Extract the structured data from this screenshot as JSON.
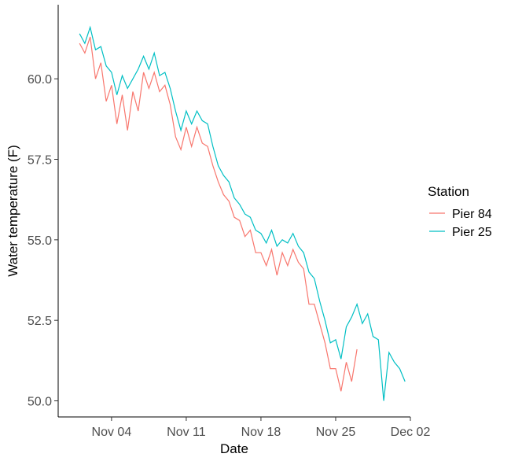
{
  "chart_data": {
    "type": "line",
    "xlabel": "Date",
    "ylabel": "Water temperature (F)",
    "x_ticks": [
      "Nov 04",
      "Nov 11",
      "Nov 18",
      "Nov 25",
      "Dec 02"
    ],
    "y_ticks": [
      "50.0",
      "52.5",
      "55.0",
      "57.5",
      "60.0"
    ],
    "xlim": [
      "2021-10-30",
      "2021-12-02"
    ],
    "ylim": [
      49.5,
      62.3
    ],
    "grid": false,
    "legend": {
      "title": "Station",
      "position": "right"
    },
    "series": [
      {
        "name": "Pier 84",
        "color": "#F8766D",
        "points": [
          [
            "2021-11-01",
            61.1
          ],
          [
            "2021-11-01T12:00",
            60.8
          ],
          [
            "2021-11-02",
            61.3
          ],
          [
            "2021-11-02T12:00",
            60.0
          ],
          [
            "2021-11-03",
            60.5
          ],
          [
            "2021-11-03T12:00",
            59.3
          ],
          [
            "2021-11-04",
            59.8
          ],
          [
            "2021-11-04T12:00",
            58.6
          ],
          [
            "2021-11-05",
            59.5
          ],
          [
            "2021-11-05T12:00",
            58.4
          ],
          [
            "2021-11-06",
            59.6
          ],
          [
            "2021-11-06T12:00",
            59.0
          ],
          [
            "2021-11-07",
            60.2
          ],
          [
            "2021-11-07T12:00",
            59.7
          ],
          [
            "2021-11-08",
            60.2
          ],
          [
            "2021-11-08T12:00",
            59.6
          ],
          [
            "2021-11-09",
            59.8
          ],
          [
            "2021-11-09T12:00",
            59.2
          ],
          [
            "2021-11-10",
            58.2
          ],
          [
            "2021-11-10T12:00",
            57.8
          ],
          [
            "2021-11-11",
            58.5
          ],
          [
            "2021-11-11T12:00",
            57.9
          ],
          [
            "2021-11-12",
            58.5
          ],
          [
            "2021-11-12T12:00",
            58.0
          ],
          [
            "2021-11-13",
            57.9
          ],
          [
            "2021-11-13T12:00",
            57.3
          ],
          [
            "2021-11-14",
            56.8
          ],
          [
            "2021-11-14T12:00",
            56.4
          ],
          [
            "2021-11-15",
            56.2
          ],
          [
            "2021-11-15T12:00",
            55.7
          ],
          [
            "2021-11-16",
            55.6
          ],
          [
            "2021-11-16T12:00",
            55.1
          ],
          [
            "2021-11-17",
            55.3
          ],
          [
            "2021-11-17T12:00",
            54.6
          ],
          [
            "2021-11-18",
            54.6
          ],
          [
            "2021-11-18T12:00",
            54.2
          ],
          [
            "2021-11-19",
            54.7
          ],
          [
            "2021-11-19T12:00",
            53.9
          ],
          [
            "2021-11-20",
            54.6
          ],
          [
            "2021-11-20T12:00",
            54.2
          ],
          [
            "2021-11-21",
            54.7
          ],
          [
            "2021-11-21T12:00",
            54.3
          ],
          [
            "2021-11-22",
            54.1
          ],
          [
            "2021-11-22T12:00",
            53.0
          ],
          [
            "2021-11-23",
            53.0
          ],
          [
            "2021-11-23T12:00",
            52.4
          ],
          [
            "2021-11-24",
            51.8
          ],
          [
            "2021-11-24T12:00",
            51.0
          ],
          [
            "2021-11-25",
            51.0
          ],
          [
            "2021-11-25T12:00",
            50.3
          ],
          [
            "2021-11-26",
            51.2
          ],
          [
            "2021-11-26T12:00",
            50.6
          ],
          [
            "2021-11-27",
            51.6
          ]
        ]
      },
      {
        "name": "Pier 25",
        "color": "#00BFC4",
        "points": [
          [
            "2021-11-01",
            61.4
          ],
          [
            "2021-11-01T12:00",
            61.1
          ],
          [
            "2021-11-02",
            61.6
          ],
          [
            "2021-11-02T12:00",
            60.9
          ],
          [
            "2021-11-03",
            61.0
          ],
          [
            "2021-11-03T12:00",
            60.4
          ],
          [
            "2021-11-04",
            60.2
          ],
          [
            "2021-11-04T12:00",
            59.5
          ],
          [
            "2021-11-05",
            60.1
          ],
          [
            "2021-11-05T12:00",
            59.7
          ],
          [
            "2021-11-06",
            60.0
          ],
          [
            "2021-11-06T12:00",
            60.3
          ],
          [
            "2021-11-07",
            60.7
          ],
          [
            "2021-11-07T12:00",
            60.3
          ],
          [
            "2021-11-08",
            60.8
          ],
          [
            "2021-11-08T12:00",
            60.1
          ],
          [
            "2021-11-09",
            60.2
          ],
          [
            "2021-11-09T12:00",
            59.7
          ],
          [
            "2021-11-10",
            59.0
          ],
          [
            "2021-11-10T12:00",
            58.4
          ],
          [
            "2021-11-11",
            59.0
          ],
          [
            "2021-11-11T12:00",
            58.6
          ],
          [
            "2021-11-12",
            59.0
          ],
          [
            "2021-11-12T12:00",
            58.7
          ],
          [
            "2021-11-13",
            58.6
          ],
          [
            "2021-11-13T12:00",
            57.9
          ],
          [
            "2021-11-14",
            57.3
          ],
          [
            "2021-11-14T12:00",
            57.0
          ],
          [
            "2021-11-15",
            56.8
          ],
          [
            "2021-11-15T12:00",
            56.3
          ],
          [
            "2021-11-16",
            56.1
          ],
          [
            "2021-11-16T12:00",
            55.8
          ],
          [
            "2021-11-17",
            55.7
          ],
          [
            "2021-11-17T12:00",
            55.3
          ],
          [
            "2021-11-18",
            55.2
          ],
          [
            "2021-11-18T12:00",
            54.9
          ],
          [
            "2021-11-19",
            55.3
          ],
          [
            "2021-11-19T12:00",
            54.8
          ],
          [
            "2021-11-20",
            55.0
          ],
          [
            "2021-11-20T12:00",
            54.9
          ],
          [
            "2021-11-21",
            55.2
          ],
          [
            "2021-11-21T12:00",
            54.8
          ],
          [
            "2021-11-22",
            54.6
          ],
          [
            "2021-11-22T12:00",
            54.0
          ],
          [
            "2021-11-23",
            53.8
          ],
          [
            "2021-11-23T12:00",
            53.1
          ],
          [
            "2021-11-24",
            52.5
          ],
          [
            "2021-11-24T12:00",
            51.8
          ],
          [
            "2021-11-25",
            51.9
          ],
          [
            "2021-11-25T12:00",
            51.3
          ],
          [
            "2021-11-26",
            52.3
          ],
          [
            "2021-11-26T12:00",
            52.6
          ],
          [
            "2021-11-27",
            53.0
          ],
          [
            "2021-11-27T12:00",
            52.4
          ],
          [
            "2021-11-28",
            52.7
          ],
          [
            "2021-11-28T12:00",
            52.0
          ],
          [
            "2021-11-29",
            51.9
          ],
          [
            "2021-11-29T12:00",
            50.0
          ],
          [
            "2021-11-30",
            51.5
          ],
          [
            "2021-11-30T12:00",
            51.2
          ],
          [
            "2021-12-01",
            51.0
          ],
          [
            "2021-12-01T12:00",
            50.6
          ]
        ]
      }
    ]
  }
}
